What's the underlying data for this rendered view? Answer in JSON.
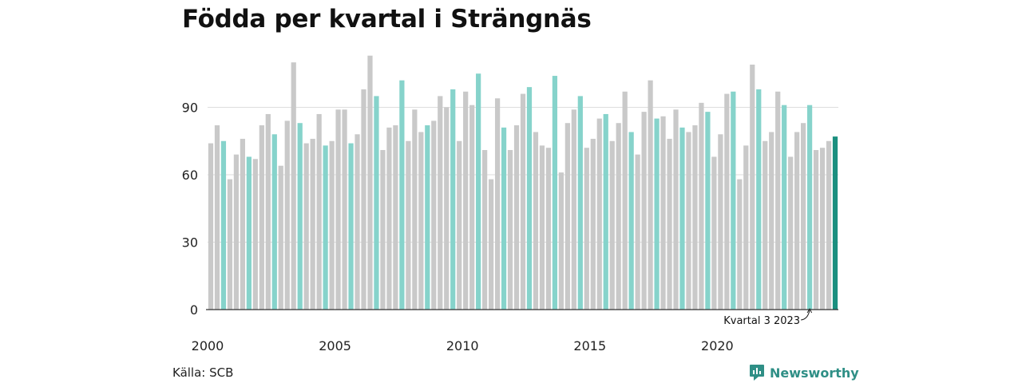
{
  "title": "Födda per kvartal i Strängnäs",
  "source": "Källa: SCB",
  "brand": "Newsworthy",
  "colors": {
    "bar_default": "#c9c9c9",
    "bar_q3": "#86d3cb",
    "bar_latest": "#1b8f7f",
    "grid": "#dddddd",
    "axis": "#333333",
    "brand": "#2f8f86"
  },
  "chart_data": {
    "type": "bar",
    "title": "Födda per kvartal i Strängnäs",
    "xlabel": "",
    "ylabel": "",
    "ylim": [
      0,
      120
    ],
    "yticks": [
      0,
      30,
      60,
      90
    ],
    "grid": true,
    "start": {
      "year": 2000,
      "quarter": 1
    },
    "x_tick_labels": [
      "2000",
      "2005",
      "2010",
      "2015",
      "2020"
    ],
    "highlight": "third quarter each year",
    "annotation": {
      "text": "Kvartal 3 2023",
      "year": 2023,
      "quarter": 3
    },
    "values": [
      74,
      82,
      75,
      58,
      69,
      76,
      68,
      67,
      82,
      87,
      78,
      64,
      84,
      110,
      83,
      74,
      76,
      87,
      73,
      75,
      89,
      89,
      74,
      78,
      98,
      113,
      95,
      71,
      81,
      82,
      102,
      75,
      89,
      79,
      82,
      84,
      95,
      90,
      98,
      75,
      97,
      91,
      105,
      71,
      58,
      94,
      81,
      71,
      82,
      96,
      99,
      79,
      73,
      72,
      104,
      61,
      83,
      89,
      95,
      72,
      76,
      85,
      87,
      75,
      83,
      97,
      79,
      69,
      88,
      102,
      85,
      86,
      76,
      89,
      81,
      79,
      82,
      92,
      88,
      68,
      78,
      96,
      97,
      58,
      73,
      109,
      98,
      75,
      79,
      97,
      91,
      68,
      79,
      83,
      91,
      71,
      72,
      75,
      77
    ]
  }
}
